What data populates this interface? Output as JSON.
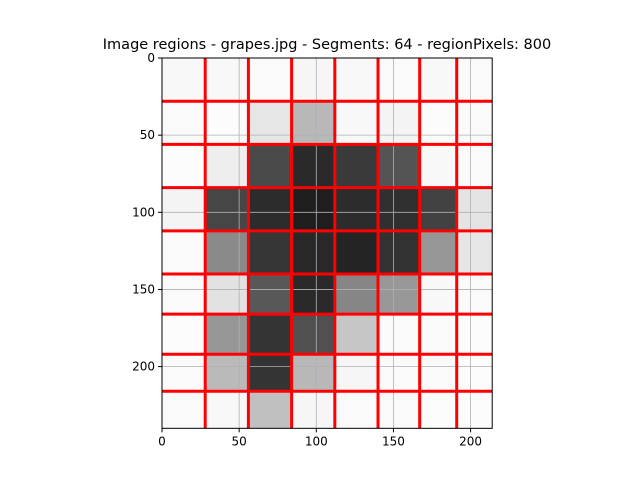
{
  "chart_data": {
    "type": "heatmap",
    "title": "Image regions - grapes.jpg - Segments: 64 - regionPixels: 800",
    "xlabel": "",
    "ylabel": "",
    "xlim": [
      0,
      214
    ],
    "ylim": [
      240,
      0
    ],
    "x_ticks": [
      0,
      50,
      100,
      150,
      200
    ],
    "y_ticks": [
      0,
      50,
      100,
      150,
      200
    ],
    "grid": true,
    "colormap": "gray",
    "boundary_color": "#ff0000",
    "x_boundaries": [
      28,
      56,
      84,
      112,
      140,
      167,
      191,
      214
    ],
    "y_boundaries": [
      0,
      28,
      56,
      84,
      112,
      140,
      166,
      192,
      216,
      240
    ],
    "cells": [
      [
        248,
        248,
        250,
        246,
        248,
        250,
        248,
        250
      ],
      [
        250,
        252,
        230,
        184,
        248,
        244,
        252,
        250
      ],
      [
        252,
        238,
        74,
        42,
        58,
        84,
        248,
        250
      ],
      [
        244,
        70,
        44,
        30,
        44,
        48,
        66,
        228
      ],
      [
        250,
        138,
        54,
        40,
        36,
        50,
        150,
        230
      ],
      [
        250,
        226,
        88,
        42,
        134,
        152,
        248,
        250
      ],
      [
        252,
        150,
        52,
        80,
        198,
        250,
        250,
        252
      ],
      [
        250,
        186,
        52,
        184,
        246,
        250,
        250,
        252
      ],
      [
        250,
        248,
        192,
        246,
        250,
        250,
        252,
        252
      ]
    ]
  }
}
